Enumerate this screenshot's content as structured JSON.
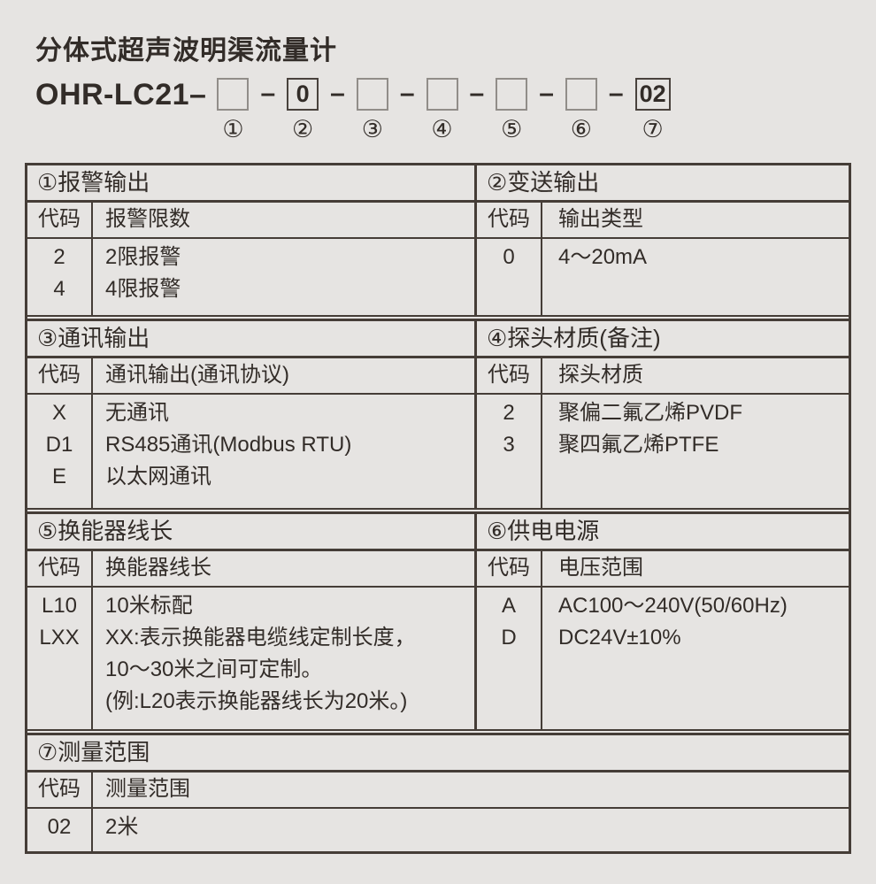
{
  "colors": {
    "page_background": "#e6e4e2",
    "ink": "#322c28",
    "table_line": "#453d37",
    "empty_box_border": "#918d89"
  },
  "title": "分体式超声波明渠流量计",
  "model": {
    "prefix": "OHR-LC21–",
    "dash": "–",
    "slots": [
      {
        "value": "",
        "num": "①"
      },
      {
        "value": "0",
        "num": "②"
      },
      {
        "value": "",
        "num": "③"
      },
      {
        "value": "",
        "num": "④"
      },
      {
        "value": "",
        "num": "⑤"
      },
      {
        "value": "",
        "num": "⑥"
      },
      {
        "value": "02",
        "num": "⑦"
      }
    ]
  },
  "sections": [
    {
      "title": "①报警输出",
      "col1": "代码",
      "col2": "报警限数",
      "rows": [
        [
          "2",
          "2限报警"
        ],
        [
          "4",
          "4限报警"
        ]
      ]
    },
    {
      "title": "②变送输出",
      "col1": "代码",
      "col2": "输出类型",
      "rows": [
        [
          "0",
          "4～20mA"
        ]
      ]
    },
    {
      "title": "③通讯输出",
      "col1": "代码",
      "col2": "通讯输出(通讯协议)",
      "rows": [
        [
          "X",
          "无通讯"
        ],
        [
          "D1",
          "RS485通讯(Modbus RTU)"
        ],
        [
          "E",
          "以太网通讯"
        ]
      ]
    },
    {
      "title": "④探头材质(备注)",
      "col1": "代码",
      "col2": "探头材质",
      "rows": [
        [
          "2",
          "聚偏二氟乙烯PVDF"
        ],
        [
          "3",
          "聚四氟乙烯PTFE"
        ]
      ]
    },
    {
      "title": "⑤换能器线长",
      "col1": "代码",
      "col2": "换能器线长",
      "rows": [
        [
          "L10",
          "10米标配"
        ],
        [
          "LXX",
          "XX:表示换能器电缆线定制长度，",
          "10～30米之间可定制。",
          "(例:L20表示换能器线长为20米。)"
        ]
      ]
    },
    {
      "title": "⑥供电电源",
      "col1": "代码",
      "col2": "电压范围",
      "rows": [
        [
          "A",
          "AC100～240V(50/60Hz)"
        ],
        [
          "D",
          "DC24V±10%"
        ]
      ]
    },
    {
      "title": "⑦测量范围",
      "col1": "代码",
      "col2": "测量范围",
      "rows": [
        [
          "02",
          "2米"
        ]
      ]
    }
  ]
}
